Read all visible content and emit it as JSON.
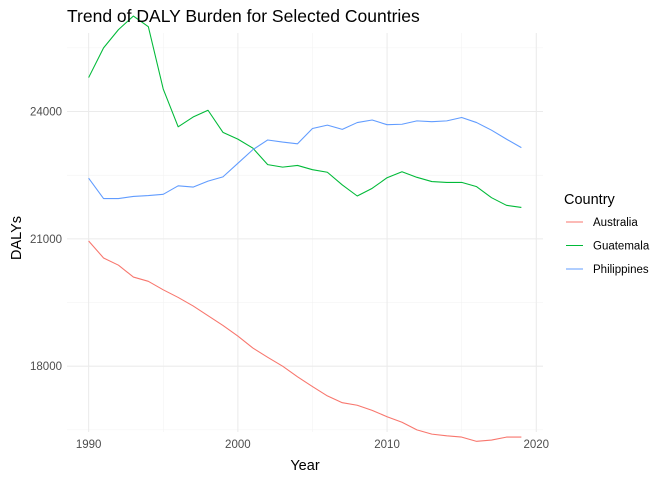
{
  "chart_data": {
    "type": "line",
    "title": "Trend of DALY Burden for Selected Countries",
    "xlabel": "Year",
    "ylabel": "DALYs",
    "xlim": [
      1988.55,
      2020.45
    ],
    "ylim": [
      16450,
      25850
    ],
    "x_ticks": [
      1990,
      2000,
      2010,
      2020
    ],
    "y_ticks": [
      18000,
      21000,
      24000
    ],
    "x_minor_ticks": [
      1995,
      2005,
      2015
    ],
    "y_minor_ticks": [
      16500,
      19500,
      22500,
      25500
    ],
    "grid": true,
    "legend": {
      "title": "Country",
      "position": "right"
    },
    "x": [
      1990,
      1991,
      1992,
      1993,
      1994,
      1995,
      1996,
      1997,
      1998,
      1999,
      2000,
      2001,
      2002,
      2003,
      2004,
      2005,
      2006,
      2007,
      2008,
      2009,
      2010,
      2011,
      2012,
      2013,
      2014,
      2015,
      2016,
      2017,
      2018,
      2019
    ],
    "series": [
      {
        "name": "Australia",
        "color": "#F8766D",
        "values": [
          20950,
          20550,
          20380,
          20100,
          20000,
          19800,
          19620,
          19420,
          19190,
          18960,
          18710,
          18430,
          18210,
          18000,
          17750,
          17520,
          17300,
          17140,
          17080,
          16960,
          16810,
          16680,
          16500,
          16400,
          16360,
          16330,
          16230,
          16260,
          16330,
          16330
        ]
      },
      {
        "name": "Guatemala",
        "color": "#00BA38",
        "values": [
          24800,
          25500,
          25930,
          26250,
          26000,
          24530,
          23640,
          23870,
          24030,
          23510,
          23350,
          23140,
          22750,
          22690,
          22730,
          22630,
          22570,
          22270,
          22010,
          22190,
          22440,
          22580,
          22450,
          22350,
          22330,
          22330,
          22230,
          21970,
          21790,
          21740
        ]
      },
      {
        "name": "Philippines",
        "color": "#619CFF",
        "values": [
          22430,
          21950,
          21950,
          22000,
          22020,
          22050,
          22250,
          22220,
          22360,
          22460,
          22780,
          23100,
          23330,
          23280,
          23240,
          23600,
          23680,
          23580,
          23740,
          23800,
          23690,
          23700,
          23780,
          23760,
          23780,
          23860,
          23740,
          23560,
          23350,
          23150
        ]
      }
    ]
  }
}
